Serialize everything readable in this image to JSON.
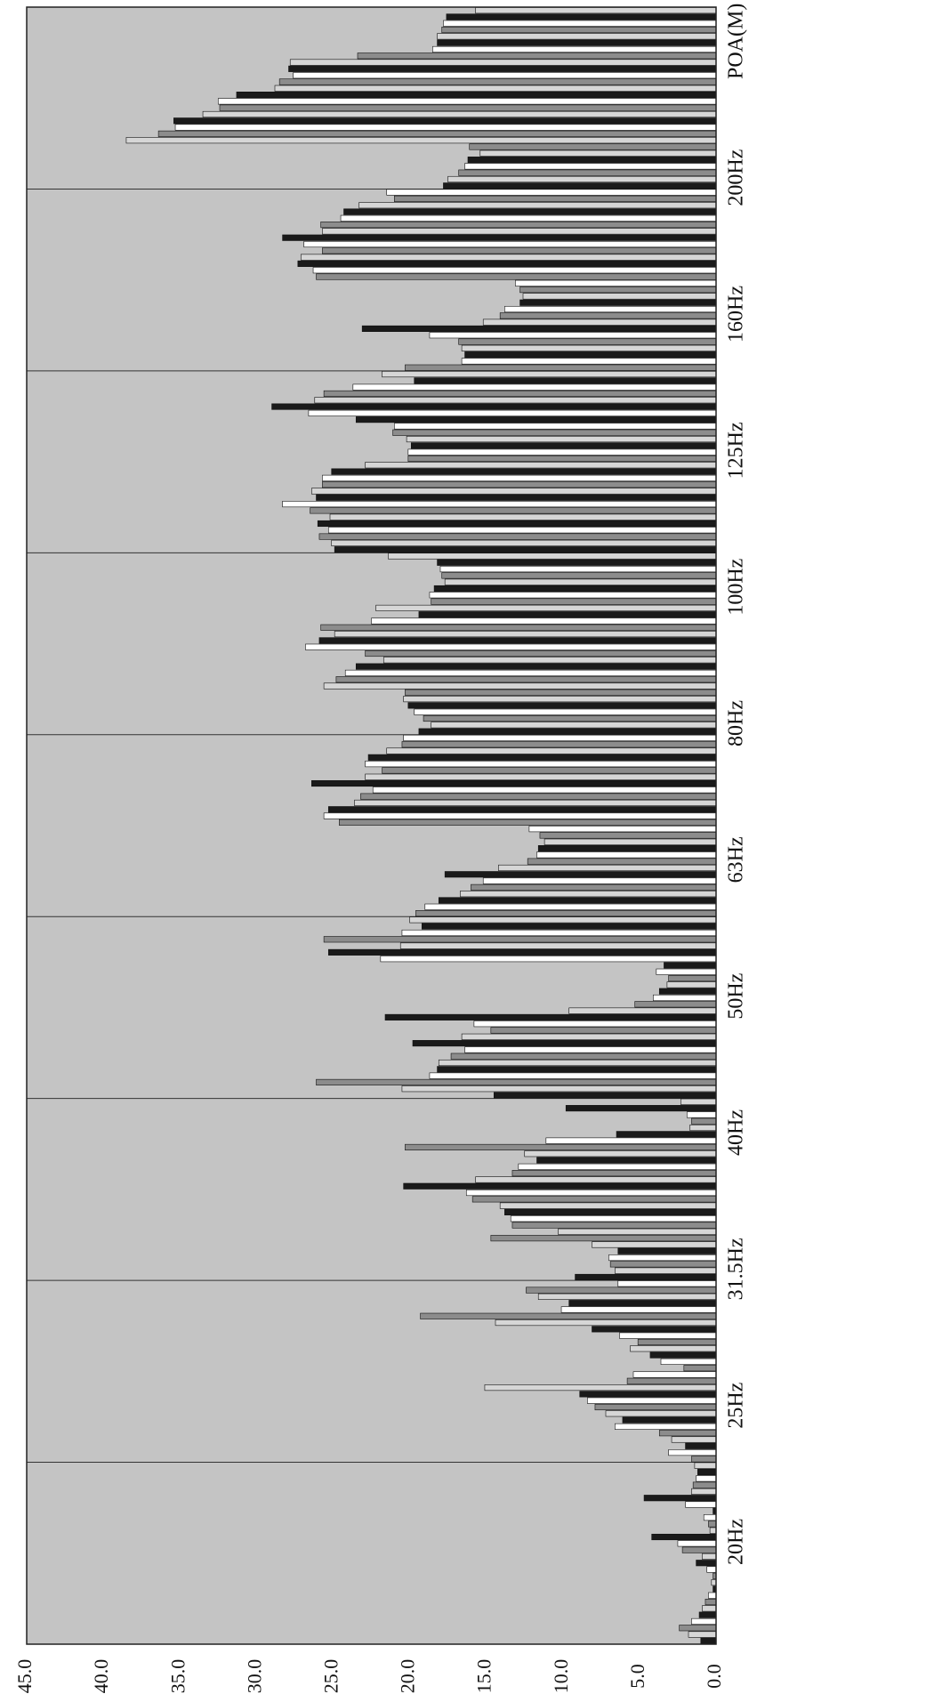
{
  "chart_data": {
    "type": "bar",
    "orientation": "horizontal",
    "title": "",
    "xlabel": "",
    "ylabel": "",
    "value_axis": {
      "range": [
        0,
        45
      ],
      "ticks": [
        "0.0",
        "5.0",
        "10.0",
        "15.0",
        "20.0",
        "25.0",
        "30.0",
        "35.0",
        "40.0",
        "45.0"
      ]
    },
    "grid": true,
    "legend": "none",
    "colors": {
      "plot_background": "#c4c4c4",
      "gridline": "#333333",
      "series_palette": [
        "#1a1a1a",
        "#ffffff",
        "#8c8c8c",
        "#d6d6d6"
      ]
    },
    "categories": [
      {
        "label": "20Hz",
        "values": [
          0.2,
          0.8,
          0.5,
          0.4,
          4.2,
          2.5,
          2.2,
          0.9,
          1.3,
          0.6,
          0.2,
          0.3,
          0.2,
          0.5,
          0.7,
          0.9,
          1.1,
          1.6,
          2.4,
          1.8,
          1.0
        ]
      },
      {
        "label": "25Hz",
        "values": [
          5.4,
          5.8,
          15.1,
          8.9,
          8.4,
          7.9,
          7.2,
          6.1,
          6.6,
          3.7,
          2.9,
          2.0,
          3.1,
          1.6,
          1.4,
          1.2,
          1.3,
          1.5,
          1.6,
          4.7,
          2.0
        ]
      },
      {
        "label": "31.5Hz",
        "values": [
          14.7,
          8.1,
          6.4,
          7.0,
          6.9,
          6.6,
          9.2,
          6.4,
          12.4,
          11.6,
          9.6,
          10.1,
          19.3,
          14.4,
          8.1,
          6.3,
          5.1,
          5.6,
          4.3,
          3.6,
          2.1
        ]
      },
      {
        "label": "40Hz",
        "values": [
          2.3,
          9.8,
          1.9,
          1.6,
          1.7,
          6.5,
          11.1,
          20.3,
          12.5,
          11.7,
          12.9,
          13.3,
          15.7,
          20.4,
          16.3,
          15.9,
          14.1,
          13.8,
          13.4,
          13.3,
          10.3
        ]
      },
      {
        "label": "50Hz",
        "values": [
          3.4,
          3.9,
          3.1,
          3.2,
          3.7,
          4.1,
          5.3,
          9.6,
          21.6,
          15.8,
          14.7,
          16.6,
          19.8,
          16.4,
          17.3,
          18.1,
          18.2,
          18.7,
          26.1,
          20.5,
          14.5
        ]
      },
      {
        "label": "63Hz",
        "values": [
          12.2,
          11.5,
          11.2,
          11.6,
          11.7,
          12.3,
          14.2,
          17.7,
          15.2,
          16.0,
          16.7,
          18.1,
          19.0,
          19.6,
          20.0,
          19.2,
          20.5,
          25.6,
          20.6,
          25.3,
          21.9
        ]
      },
      {
        "label": "80Hz",
        "values": [
          20.3,
          20.4,
          20.1,
          19.7,
          19.1,
          18.6,
          19.4,
          20.4,
          20.5,
          21.5,
          22.7,
          22.9,
          21.8,
          22.9,
          26.4,
          22.4,
          23.2,
          23.6,
          25.3,
          25.6,
          24.6
        ]
      },
      {
        "label": "100Hz",
        "values": [
          21.4,
          18.2,
          18.0,
          17.9,
          17.7,
          18.4,
          18.7,
          18.6,
          22.2,
          19.4,
          22.5,
          25.8,
          24.9,
          25.9,
          26.8,
          22.9,
          21.7,
          23.5,
          24.2,
          24.8,
          25.6
        ]
      },
      {
        "label": "125Hz",
        "values": [
          23.5,
          21.0,
          21.1,
          20.2,
          19.9,
          20.1,
          20.1,
          22.9,
          25.1,
          25.7,
          25.7,
          26.4,
          26.1,
          28.3,
          26.5,
          25.2,
          26.0,
          25.3,
          25.9,
          25.1,
          24.9
        ]
      },
      {
        "label": "160Hz",
        "values": [
          13.1,
          12.8,
          12.6,
          12.8,
          13.8,
          14.1,
          15.2,
          23.1,
          18.7,
          16.8,
          16.6,
          16.4,
          16.6,
          20.3,
          21.8,
          19.7,
          23.7,
          25.6,
          26.2,
          29.0,
          26.6
        ]
      },
      {
        "label": "200Hz",
        "values": [
          16.1,
          15.4,
          16.2,
          16.4,
          16.8,
          17.5,
          17.8,
          21.5,
          21.0,
          23.3,
          24.3,
          24.5,
          25.8,
          25.7,
          28.3,
          26.9,
          25.7,
          27.1,
          27.3,
          26.3,
          26.1
        ]
      },
      {
        "label": "POA(M)",
        "values": [
          15.7,
          17.6,
          17.8,
          17.9,
          18.2,
          18.2,
          18.5,
          23.4,
          27.8,
          27.9,
          27.6,
          28.5,
          28.8,
          31.3,
          32.5,
          32.4,
          33.5,
          35.4,
          35.3,
          36.4,
          38.5
        ]
      }
    ]
  }
}
